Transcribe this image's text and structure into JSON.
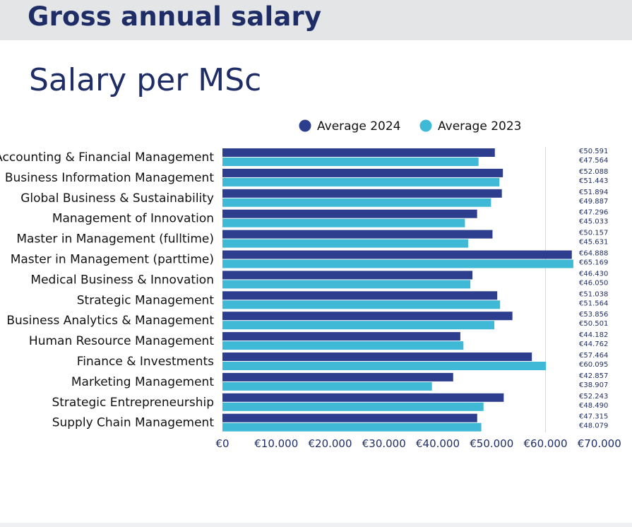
{
  "header": {
    "title": "Gross annual salary"
  },
  "section": {
    "title": "Salary per MSc"
  },
  "colors": {
    "series_2024": "#2d3e8f",
    "series_2023": "#3fb9d6",
    "text": "#1e2d66",
    "grid": "#d9d9d9"
  },
  "chart_data": {
    "type": "bar",
    "orientation": "horizontal",
    "categories": [
      "Accounting & Financial Management",
      "Business Information Management",
      "Global Business & Sustainability",
      "Management of Innovation",
      "Master in Management (fulltime)",
      "Master in Management (parttime)",
      "Medical Business & Innovation",
      "Strategic Management",
      "Business Analytics & Management",
      "Human Resource Management",
      "Finance & Investments",
      "Marketing Management",
      "Strategic Entrepreneurship",
      "Supply Chain Management"
    ],
    "series": [
      {
        "name": "Average 2024",
        "values": [
          50591,
          52088,
          51894,
          47296,
          50157,
          64888,
          46430,
          51038,
          53856,
          44182,
          57464,
          42857,
          52243,
          47315
        ],
        "labels": [
          "€50.591",
          "€52.088",
          "€51.894",
          "€47.296",
          "€50.157",
          "€64.888",
          "€46.430",
          "€51.038",
          "€53.856",
          "€44.182",
          "€57.464",
          "€42.857",
          "€52.243",
          "€47.315"
        ]
      },
      {
        "name": "Average 2023",
        "values": [
          47564,
          51443,
          49887,
          45033,
          45631,
          65169,
          46050,
          51564,
          50501,
          44762,
          60095,
          38907,
          48490,
          48079
        ],
        "labels": [
          "€47.564",
          "€51.443",
          "€49.887",
          "€45.033",
          "€45.631",
          "€65.169",
          "€46.050",
          "€51.564",
          "€50.501",
          "€44.762",
          "€60.095",
          "€38.907",
          "€48.490",
          "€48.079"
        ]
      }
    ],
    "xlim": [
      0,
      70000
    ],
    "xticks": [
      0,
      10000,
      20000,
      30000,
      40000,
      50000,
      60000,
      70000
    ],
    "xtick_labels": [
      "€0",
      "€10.000",
      "€20.000",
      "€30.000",
      "€40.000",
      "€50.000",
      "€60.000",
      "€70.000"
    ],
    "gridlines_at": [
      60000
    ],
    "legend_position": "top"
  }
}
